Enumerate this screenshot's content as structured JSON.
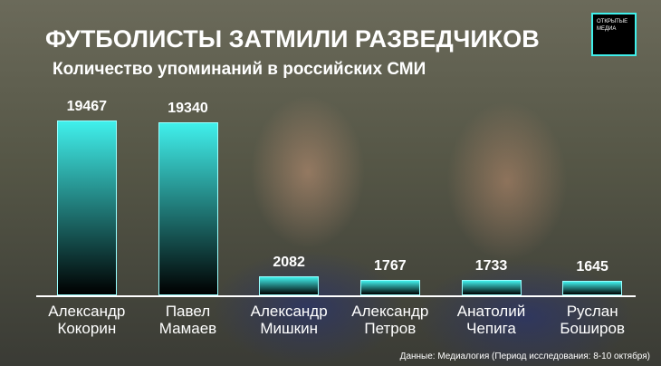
{
  "chart_data": {
    "type": "bar",
    "title": "ФУТБОЛИСТЫ ЗАТМИЛИ РАЗВЕДЧИКОВ",
    "subtitle": "Количество упоминаний в российских СМИ",
    "categories": [
      "Александр Кокорин",
      "Павел Мамаев",
      "Александр Мишкин",
      "Александр Петров",
      "Анатолий Чепига",
      "Руслан Боширов"
    ],
    "values": [
      19467,
      19340,
      2082,
      1767,
      1733,
      1645
    ],
    "color": "#40f0ec",
    "ylim": [
      0,
      20000
    ],
    "source": "Данные: Медиалогия (Период исследования: 8-10 октября)",
    "logo": "ОТКРЫТЫЕ МЕДИА"
  }
}
